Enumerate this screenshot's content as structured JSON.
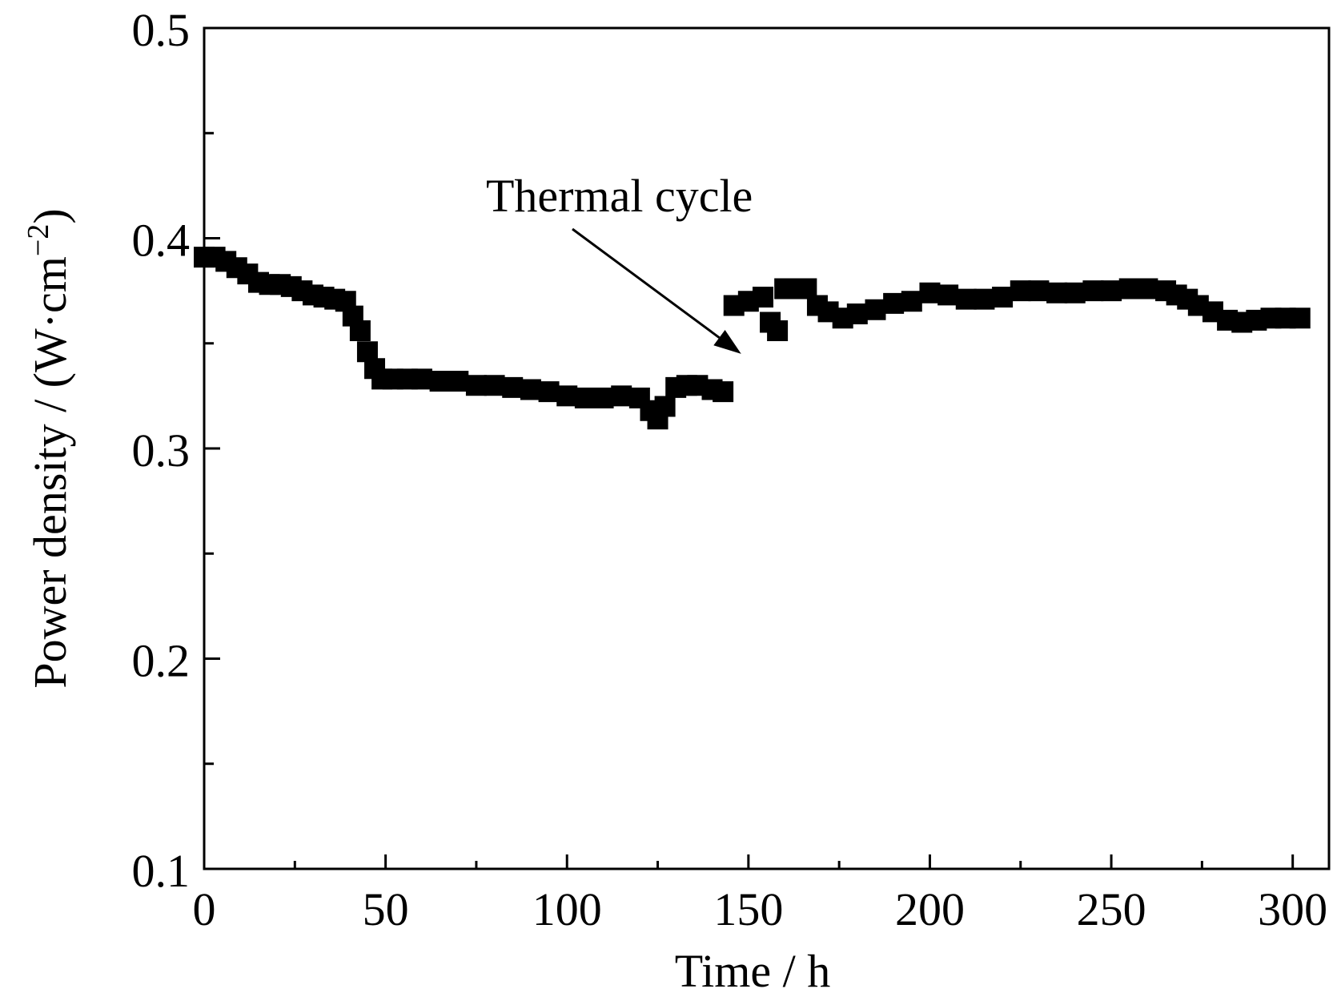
{
  "chart_data": {
    "type": "scatter",
    "xlabel": "Time  / h",
    "ylabel_main": "Power density / (W·cm",
    "ylabel_sup": "−2",
    "ylabel_close": ")",
    "xlim": [
      0,
      310
    ],
    "ylim": [
      0.1,
      0.5
    ],
    "xticks": [
      "0",
      "50",
      "100",
      "150",
      "200",
      "250",
      "300"
    ],
    "yticks": [
      "0.1",
      "0.2",
      "0.3",
      "0.4",
      "0.5"
    ],
    "grid": false,
    "legend": "none",
    "marker": "square",
    "color": "#000000",
    "annotation": {
      "text": "Thermal cycle",
      "x": 148,
      "y": 0.345
    },
    "x": [
      0,
      3,
      6,
      9,
      12,
      15,
      18,
      21,
      24,
      27,
      30,
      33,
      36,
      39,
      41,
      43,
      45,
      47,
      49,
      52,
      56,
      60,
      65,
      70,
      75,
      80,
      85,
      90,
      95,
      100,
      105,
      110,
      115,
      120,
      123,
      125,
      127,
      130,
      133,
      136,
      140,
      143,
      146,
      150,
      154,
      156,
      158,
      160,
      163,
      166,
      169,
      172,
      176,
      180,
      185,
      190,
      195,
      200,
      205,
      210,
      215,
      220,
      225,
      230,
      235,
      240,
      245,
      250,
      255,
      260,
      265,
      268,
      271,
      274,
      278,
      282,
      286,
      290,
      294,
      298,
      302
    ],
    "y": [
      0.391,
      0.391,
      0.389,
      0.386,
      0.383,
      0.379,
      0.378,
      0.378,
      0.377,
      0.375,
      0.373,
      0.372,
      0.371,
      0.37,
      0.363,
      0.356,
      0.346,
      0.338,
      0.333,
      0.333,
      0.333,
      0.333,
      0.332,
      0.332,
      0.33,
      0.33,
      0.329,
      0.328,
      0.327,
      0.325,
      0.324,
      0.324,
      0.325,
      0.324,
      0.318,
      0.314,
      0.32,
      0.329,
      0.33,
      0.33,
      0.328,
      0.327,
      0.368,
      0.37,
      0.372,
      0.36,
      0.356,
      0.376,
      0.376,
      0.376,
      0.368,
      0.365,
      0.362,
      0.364,
      0.366,
      0.369,
      0.37,
      0.374,
      0.373,
      0.371,
      0.371,
      0.372,
      0.375,
      0.375,
      0.374,
      0.374,
      0.375,
      0.375,
      0.376,
      0.376,
      0.375,
      0.373,
      0.371,
      0.368,
      0.365,
      0.361,
      0.36,
      0.361,
      0.362,
      0.362,
      0.362
    ]
  }
}
